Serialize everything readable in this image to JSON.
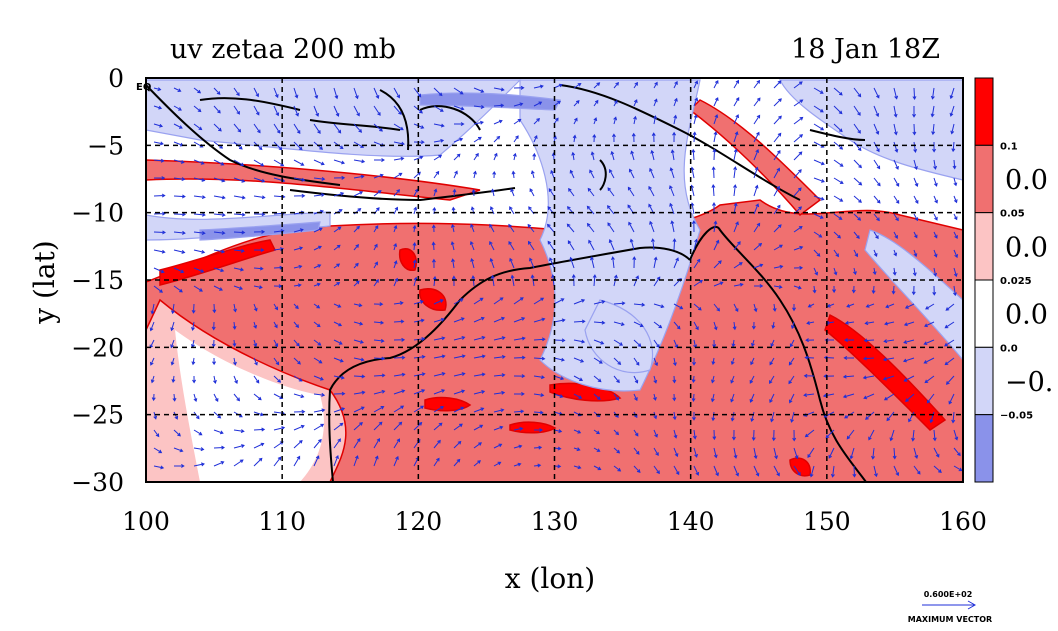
{
  "chart_data": {
    "type": "heatmap",
    "title_left": "uv zetaa 200 mb",
    "title_right": "18 Jan 18Z",
    "xlabel": "x (lon)",
    "ylabel": "y (lat)",
    "xlim": [
      100,
      160
    ],
    "ylim": [
      -30,
      0
    ],
    "x_ticks": [
      "100",
      "110",
      "120",
      "130",
      "140",
      "150",
      "160"
    ],
    "y_ticks": [
      "0",
      "−5",
      "−10",
      "−15",
      "−20",
      "−25",
      "−30"
    ],
    "x_tick_values": [
      100,
      110,
      120,
      130,
      140,
      150,
      160
    ],
    "y_tick_values": [
      0,
      -5,
      -10,
      -15,
      -20,
      -25,
      -30
    ],
    "corner_label": "EQ",
    "colorbar": {
      "levels": [
        "0.1",
        "0.05",
        "0.025",
        "0.0",
        "−0.05"
      ],
      "cut_labels": [
        "0.0",
        "0.0",
        "0.0",
        "−0."
      ],
      "colors": [
        "#ff0000",
        "#f07070",
        "#fcc4c4",
        "#ffffff",
        "#d2d6f8",
        "#8a92ea"
      ]
    },
    "max_vector": {
      "value": "0.600E+02",
      "label": "MAXIMUM VECTOR"
    },
    "colors": {
      "vector": "#1f2fd8",
      "coast": "#000000",
      "pos_contour": "#e00000",
      "neg_contour": "#9aa2f0"
    }
  }
}
